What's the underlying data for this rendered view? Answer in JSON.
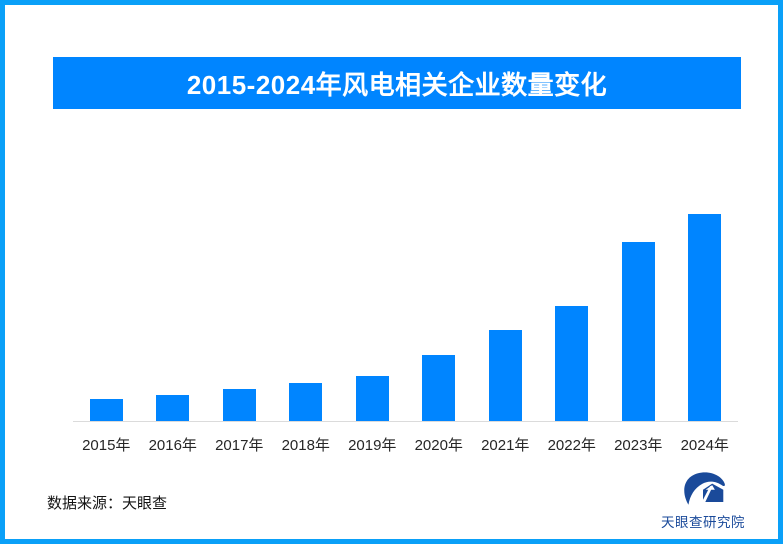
{
  "page": {
    "source_note": "数据来源：天眼查",
    "logo": {
      "name": "天眼查研究院",
      "icon": "tianyancha-eye-logo"
    }
  },
  "colors": {
    "frame_border": "#0AA0F8",
    "banner_bg": "#0085FF",
    "banner_text": "#FFFFFF",
    "bar_fill": "#0085FF",
    "axis_line": "#DBDBDB",
    "tick_text": "#262626",
    "source_text": "#141414",
    "logo_navy": "#1A4A9A",
    "background": "#FFFFFF"
  },
  "chart_data": {
    "type": "bar",
    "title": "2015-2024年风电相关企业数量变化",
    "categories": [
      "2015年",
      "2016年",
      "2017年",
      "2018年",
      "2019年",
      "2020年",
      "2021年",
      "2022年",
      "2023年",
      "2024年"
    ],
    "values": [
      10.4,
      12.8,
      15.7,
      18.3,
      21.7,
      31.8,
      43.9,
      55.7,
      86.5,
      100
    ],
    "value_note": "无数值轴与数据标签，数值为相对柱高估计（2024年=100）",
    "xlabel": "",
    "ylabel": "",
    "ylim": [
      0,
      104.3
    ],
    "grid": false,
    "legend": false,
    "bar_color": "#0085FF",
    "single_series": true
  }
}
